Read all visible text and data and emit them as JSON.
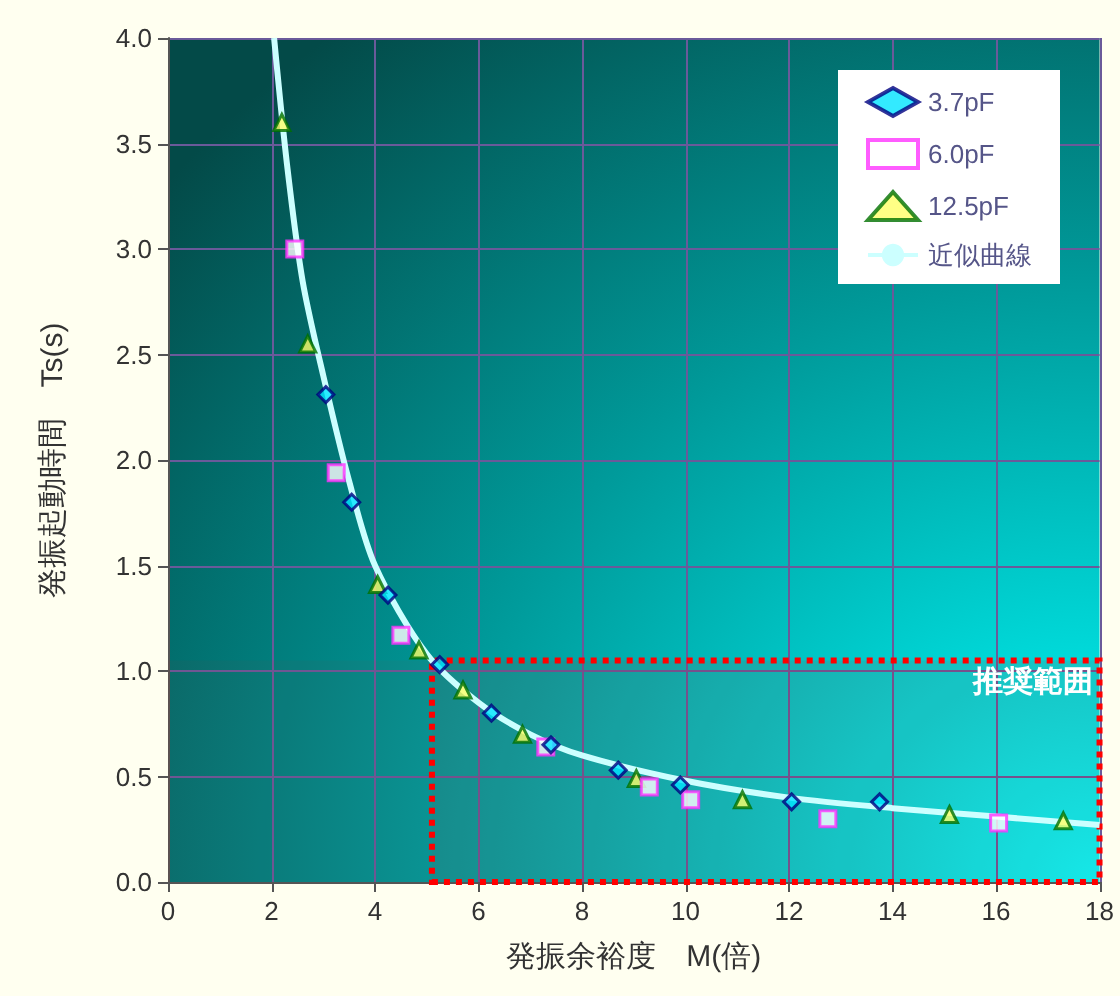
{
  "chart_data": {
    "type": "scatter",
    "xlabel": "発振余裕度　M(倍)",
    "ylabel": "発振起動時間　Ts(s)",
    "xlim": [
      0,
      18
    ],
    "xticks": [
      0,
      2,
      4,
      6,
      8,
      10,
      12,
      14,
      16,
      18
    ],
    "ylim": [
      0,
      4
    ],
    "yticks": [
      {
        "value": 0,
        "label": "0.0"
      },
      0.5,
      {
        "value": 1,
        "label": "1.0"
      },
      1.5,
      {
        "value": 2,
        "label": "2.0"
      },
      2.5,
      {
        "value": 3,
        "label": "3.0"
      },
      3.5,
      {
        "value": 4,
        "label": "4.0"
      }
    ],
    "grid": true,
    "legend": "top right",
    "series": [
      {
        "name": "3.7pF",
        "color": "#00e5ff",
        "marker": "diamond",
        "x": [
          3.05,
          3.55,
          4.25,
          5.25,
          6.25,
          7.4,
          8.7,
          9.9,
          12.05,
          13.75
        ],
        "values": [
          2.31,
          1.8,
          1.36,
          1.03,
          0.8,
          0.65,
          0.53,
          0.46,
          0.38,
          0.38
        ]
      },
      {
        "name": "6.0pF",
        "color": "#ff33ff",
        "marker": "square",
        "x": [
          2.45,
          3.25,
          4.5,
          7.3,
          9.3,
          10.1,
          12.75,
          16.05
        ],
        "values": [
          3.0,
          1.94,
          1.17,
          0.64,
          0.45,
          0.39,
          0.3,
          0.28
        ]
      },
      {
        "name": "12.5pF",
        "color": "#ffff66",
        "marker": "triangle",
        "x": [
          2.2,
          2.7,
          4.05,
          4.85,
          5.7,
          6.85,
          9.05,
          11.1,
          15.1,
          17.3
        ],
        "values": [
          3.6,
          2.55,
          1.41,
          1.1,
          0.91,
          0.7,
          0.49,
          0.39,
          0.32,
          0.29
        ]
      },
      {
        "name": "近似曲線",
        "type": "line",
        "color": "#ccffff",
        "marker": "none",
        "x": [
          2.05,
          2.3,
          2.6,
          3,
          3.5,
          4,
          5,
          6,
          7,
          8,
          10,
          12,
          14,
          16,
          18
        ],
        "values": [
          4.0,
          3.4,
          2.85,
          2.4,
          1.9,
          1.5,
          1.08,
          0.85,
          0.7,
          0.6,
          0.48,
          0.4,
          0.35,
          0.31,
          0.27
        ]
      }
    ],
    "bands": [
      {
        "axis": "x",
        "from": 5.1,
        "to": 18,
        "label": "推奨範囲",
        "color": "#ff0000"
      },
      {
        "axis": "y",
        "from": 0,
        "to": 1.05,
        "color": "#ff0000"
      }
    ]
  }
}
